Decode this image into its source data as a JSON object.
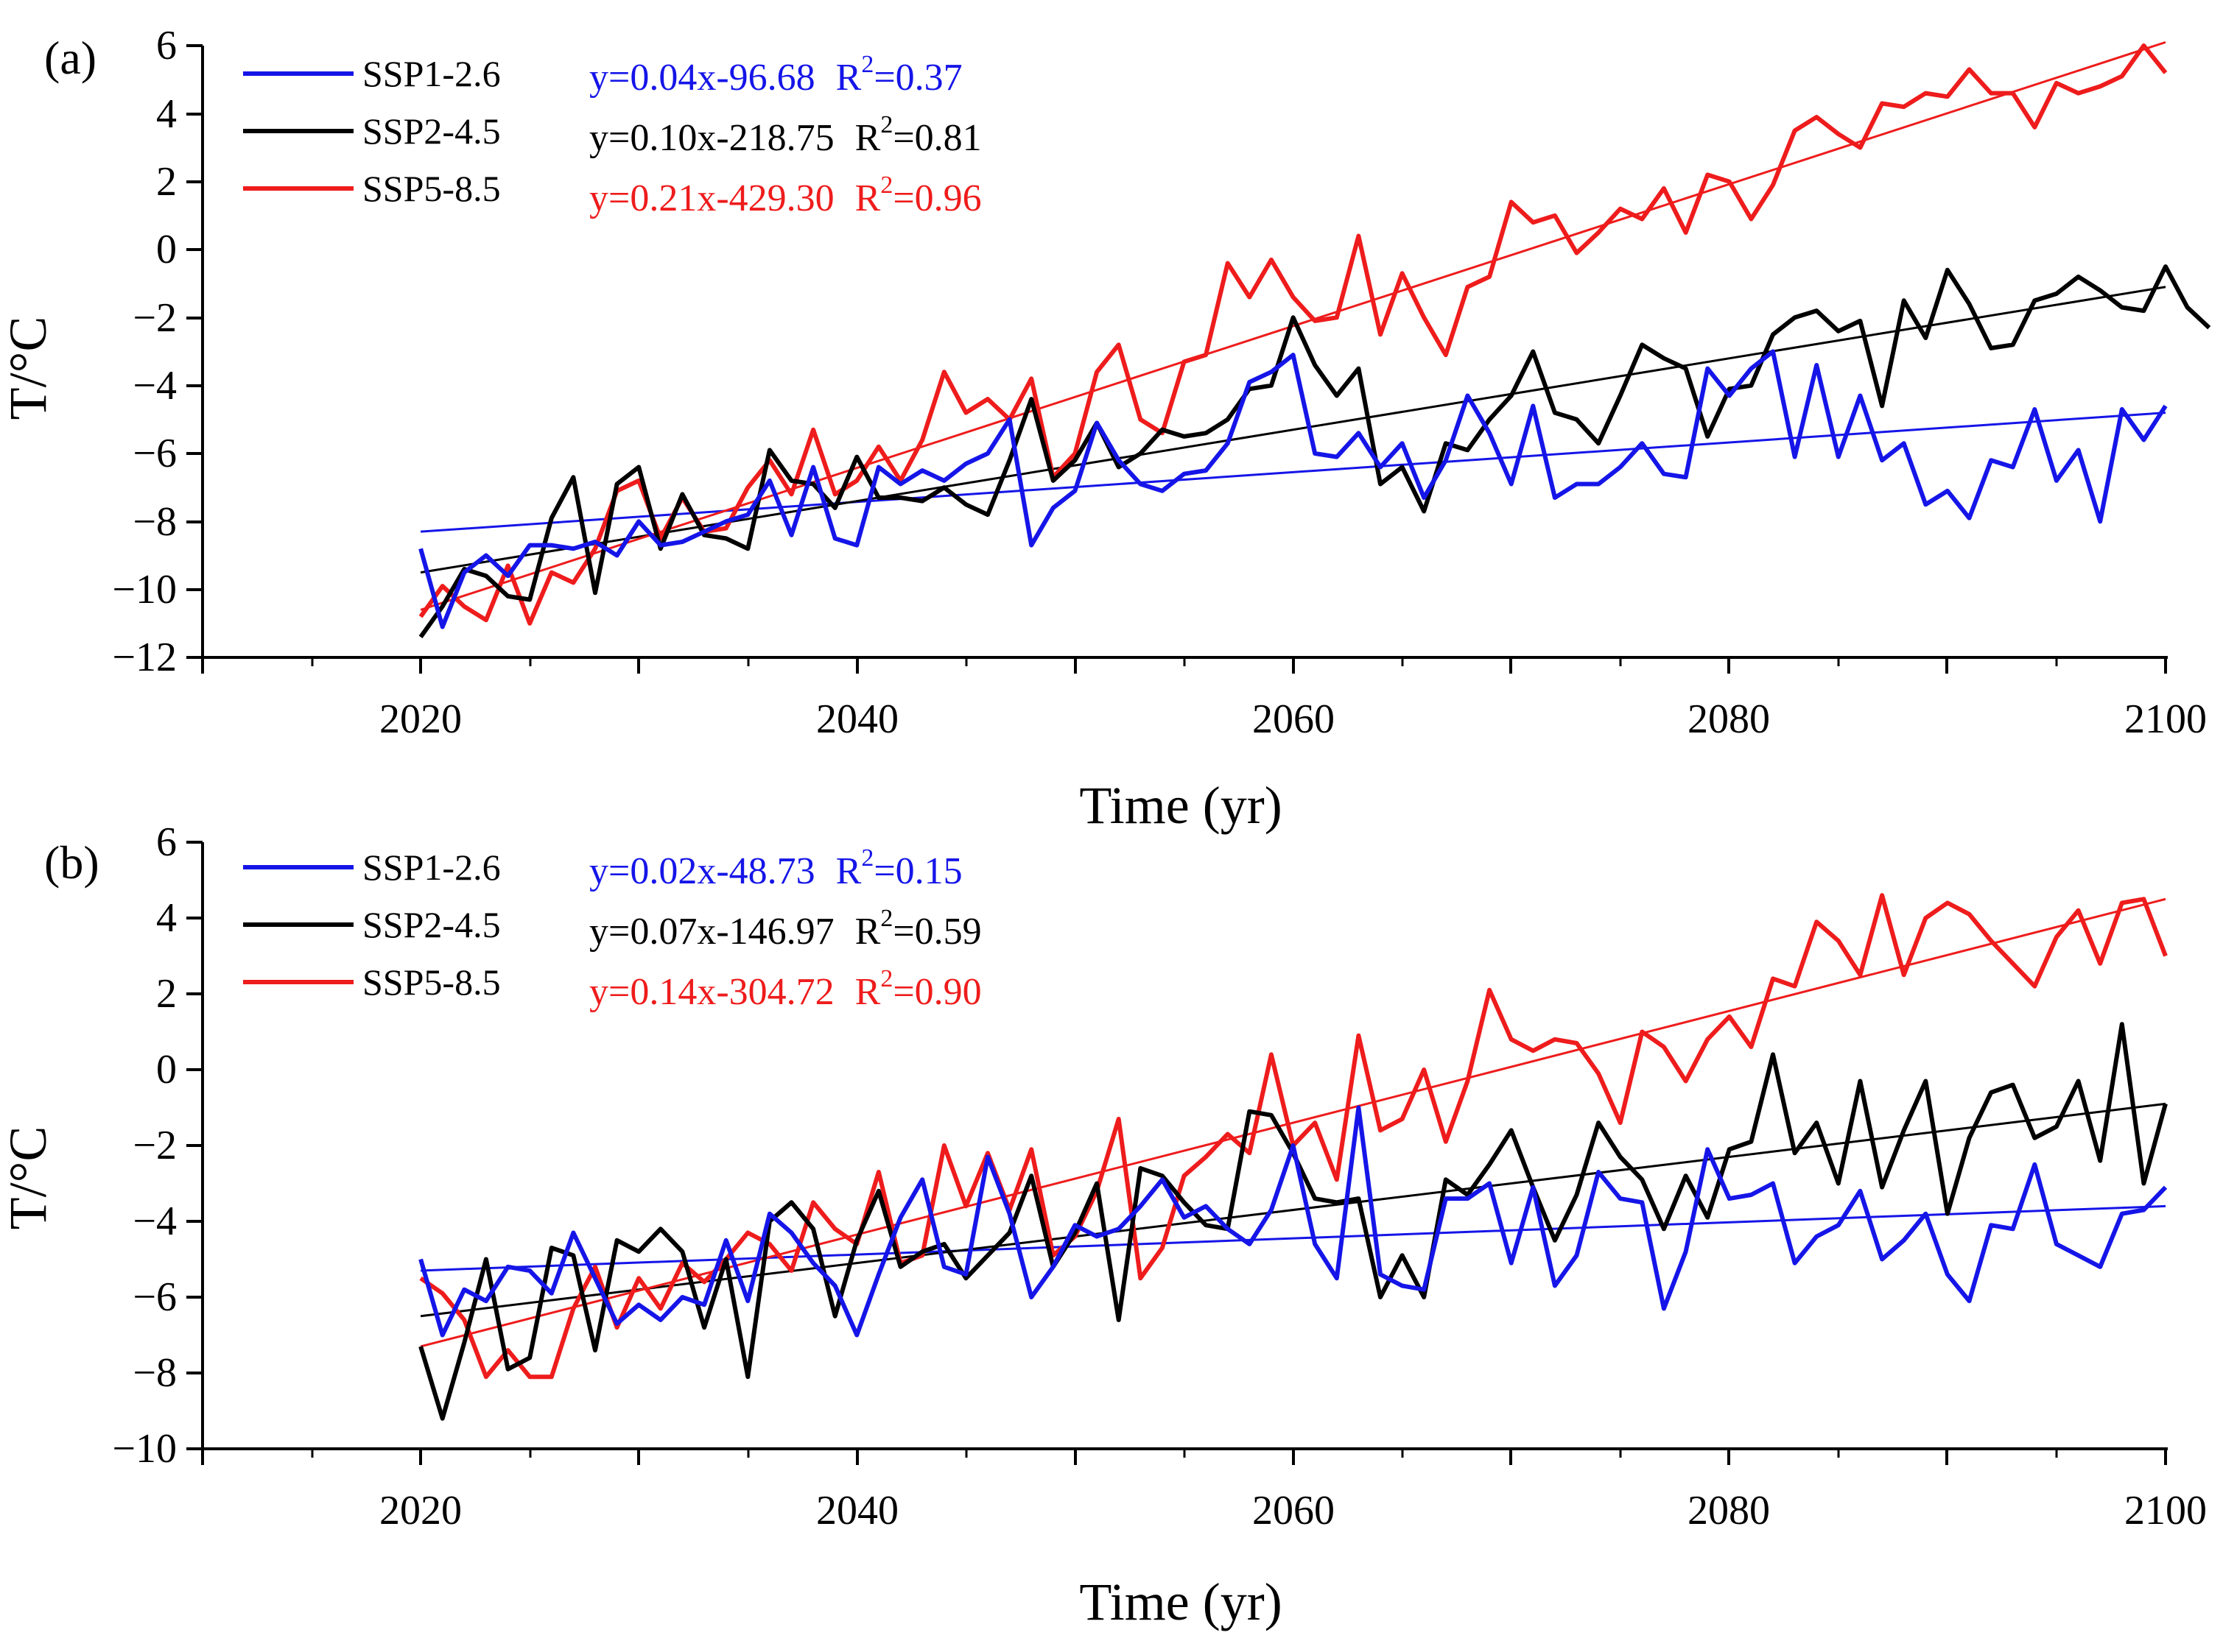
{
  "colors": {
    "ssp126": "#1515e8",
    "ssp245": "#000000",
    "ssp585": "#ee1c1c",
    "axis": "#000000"
  },
  "chart_data": [
    {
      "type": "line",
      "panel_label": "(a)",
      "xlabel": "Time (yr)",
      "ylabel": "T/°C",
      "xlim": [
        2010,
        2100
      ],
      "ylim": [
        -12,
        6
      ],
      "xticks": [
        2020,
        2040,
        2060,
        2080,
        2100
      ],
      "yticks": [
        -12,
        -10,
        -8,
        -6,
        -4,
        -2,
        0,
        2,
        4,
        6
      ],
      "ytick_labels": [
        "−12",
        "−10",
        "−8",
        "−6",
        "−4",
        "−2",
        "0",
        "2",
        "4",
        "6"
      ],
      "series": [
        {
          "name": "SSP1-2.6",
          "color_key": "ssp126",
          "x_start": 2020,
          "values": [
            -8.8,
            -11.1,
            -9.5,
            -9.0,
            -9.6,
            -8.7,
            -8.7,
            -8.8,
            -8.6,
            -9.0,
            -8.0,
            -8.7,
            -8.6,
            -8.3,
            -8.0,
            -7.8,
            -6.8,
            -8.4,
            -6.4,
            -8.5,
            -8.7,
            -6.4,
            -6.9,
            -6.5,
            -6.8,
            -6.3,
            -6.0,
            -5.0,
            -8.7,
            -7.6,
            -7.1,
            -5.1,
            -6.2,
            -6.9,
            -7.1,
            -6.6,
            -6.5,
            -5.7,
            -3.9,
            -3.6,
            -3.1,
            -6.0,
            -6.1,
            -5.4,
            -6.4,
            -5.7,
            -7.3,
            -6.2,
            -4.3,
            -5.4,
            -6.9,
            -4.6,
            -7.3,
            -6.9,
            -6.9,
            -6.4,
            -5.7,
            -6.6,
            -6.7,
            -3.5,
            -4.3,
            -3.5,
            -3.0,
            -6.1,
            -3.4,
            -6.1,
            -4.3,
            -6.2,
            -5.7,
            -7.5,
            -7.1,
            -7.9,
            -6.2,
            -6.4,
            -4.7,
            -6.8,
            -5.9,
            -8.0,
            -4.7,
            -5.6,
            -4.6
          ],
          "equation": "y=0.04x-96.68",
          "r2_label": "R",
          "r2_value": "=0.37",
          "trend": {
            "slope": 0.04,
            "intercept": -96.68
          },
          "trend_endpoints_y": [
            -8.3,
            -4.8
          ]
        },
        {
          "name": "SSP2-4.5",
          "color_key": "ssp245",
          "x_start": 2020,
          "values": [
            -11.4,
            -10.5,
            -9.4,
            -9.6,
            -10.2,
            -10.3,
            -7.9,
            -6.7,
            -10.1,
            -6.9,
            -6.4,
            -8.8,
            -7.2,
            -8.4,
            -8.5,
            -8.8,
            -5.9,
            -6.8,
            -6.9,
            -7.6,
            -6.1,
            -7.3,
            -7.3,
            -7.4,
            -7.0,
            -7.5,
            -7.8,
            -6.2,
            -4.4,
            -6.8,
            -6.2,
            -5.1,
            -6.4,
            -6.0,
            -5.3,
            -5.5,
            -5.4,
            -5.0,
            -4.1,
            -4.0,
            -2.0,
            -3.4,
            -4.3,
            -3.5,
            -6.9,
            -6.4,
            -7.7,
            -5.7,
            -5.9,
            -5.0,
            -4.3,
            -3.0,
            -4.8,
            -5.0,
            -5.7,
            -4.3,
            -2.8,
            -3.2,
            -3.5,
            -5.5,
            -4.1,
            -4.0,
            -2.5,
            -2.0,
            -1.8,
            -2.4,
            -2.1,
            -4.6,
            -1.5,
            -2.6,
            -0.6,
            -1.6,
            -2.9,
            -2.8,
            -1.5,
            -1.3,
            -0.8,
            -1.2,
            -1.7,
            -1.8,
            -0.5,
            -1.7,
            -2.3
          ],
          "equation": "y=0.10x-218.75",
          "r2_label": "R",
          "r2_value": "=0.81",
          "trend": {
            "slope": 0.1,
            "intercept": -218.75
          },
          "trend_endpoints_y": [
            -9.5,
            -1.1
          ]
        },
        {
          "name": "SSP5-8.5",
          "color_key": "ssp585",
          "x_start": 2020,
          "values": [
            -10.8,
            -9.9,
            -10.5,
            -10.9,
            -9.3,
            -11.0,
            -9.5,
            -9.8,
            -8.8,
            -7.1,
            -6.8,
            -8.5,
            -7.3,
            -8.3,
            -8.2,
            -7.0,
            -6.2,
            -7.2,
            -5.3,
            -7.2,
            -6.8,
            -5.8,
            -6.8,
            -5.6,
            -3.6,
            -4.8,
            -4.4,
            -5.0,
            -3.8,
            -6.7,
            -6.0,
            -3.6,
            -2.8,
            -5.0,
            -5.4,
            -3.3,
            -3.1,
            -0.4,
            -1.4,
            -0.3,
            -1.4,
            -2.1,
            -2.0,
            0.4,
            -2.5,
            -0.7,
            -2.0,
            -3.1,
            -1.1,
            -0.8,
            1.4,
            0.8,
            1.0,
            -0.1,
            0.5,
            1.2,
            0.9,
            1.8,
            0.5,
            2.2,
            2.0,
            0.9,
            1.9,
            3.5,
            3.9,
            3.4,
            3.0,
            4.3,
            4.2,
            4.6,
            4.5,
            5.3,
            4.6,
            4.6,
            3.6,
            4.9,
            4.6,
            4.8,
            5.1,
            6.0,
            5.2
          ],
          "equation": "y=0.21x-429.30",
          "r2_label": "R",
          "r2_value": "=0.96",
          "trend": {
            "slope": 0.21,
            "intercept": -429.3
          },
          "trend_endpoints_y": [
            -10.6,
            6.1
          ]
        }
      ]
    },
    {
      "type": "line",
      "panel_label": "(b)",
      "xlabel": "Time (yr)",
      "ylabel": "T/°C",
      "xlim": [
        2010,
        2100
      ],
      "ylim": [
        -10,
        6
      ],
      "xticks": [
        2020,
        2040,
        2060,
        2080,
        2100
      ],
      "yticks": [
        -10,
        -8,
        -6,
        -4,
        -2,
        0,
        2,
        4,
        6
      ],
      "ytick_labels": [
        "−10",
        "−8",
        "−6",
        "−4",
        "−2",
        "0",
        "2",
        "4",
        "6"
      ],
      "series": [
        {
          "name": "SSP1-2.6",
          "color_key": "ssp126",
          "x_start": 2020,
          "values": [
            -5.0,
            -7.0,
            -5.8,
            -6.1,
            -5.2,
            -5.3,
            -5.9,
            -4.3,
            -5.5,
            -6.7,
            -6.2,
            -6.6,
            -6.0,
            -6.2,
            -4.5,
            -6.1,
            -3.8,
            -4.3,
            -5.1,
            -5.7,
            -7.0,
            -5.4,
            -3.9,
            -2.9,
            -5.2,
            -5.4,
            -2.3,
            -3.8,
            -6.0,
            -5.2,
            -4.1,
            -4.4,
            -4.2,
            -3.6,
            -2.9,
            -3.9,
            -3.6,
            -4.2,
            -4.6,
            -3.7,
            -2.0,
            -4.6,
            -5.5,
            -1.0,
            -5.4,
            -5.7,
            -5.8,
            -3.4,
            -3.4,
            -3.0,
            -5.1,
            -3.1,
            -5.7,
            -4.9,
            -2.7,
            -3.4,
            -3.5,
            -6.3,
            -4.8,
            -2.1,
            -3.4,
            -3.3,
            -3.0,
            -5.1,
            -4.4,
            -4.1,
            -3.2,
            -5.0,
            -4.5,
            -3.8,
            -5.4,
            -6.1,
            -4.1,
            -4.2,
            -2.5,
            -4.6,
            -4.9,
            -5.2,
            -3.8,
            -3.7,
            -3.1
          ],
          "equation": "y=0.02x-48.73",
          "r2_label": "R",
          "r2_value": "=0.15",
          "trend": {
            "slope": 0.02,
            "intercept": -48.73
          },
          "trend_endpoints_y": [
            -5.3,
            -3.6
          ]
        },
        {
          "name": "SSP2-4.5",
          "color_key": "ssp245",
          "x_start": 2020,
          "values": [
            -7.3,
            -9.2,
            -7.2,
            -5.0,
            -7.9,
            -7.6,
            -4.7,
            -4.9,
            -7.4,
            -4.5,
            -4.8,
            -4.2,
            -4.8,
            -6.8,
            -5.0,
            -8.1,
            -4.0,
            -3.5,
            -4.2,
            -6.5,
            -4.5,
            -3.2,
            -5.2,
            -4.8,
            -4.6,
            -5.5,
            -4.9,
            -4.3,
            -2.8,
            -5.2,
            -4.3,
            -3.0,
            -6.6,
            -2.6,
            -2.8,
            -3.5,
            -4.1,
            -4.2,
            -1.1,
            -1.2,
            -2.2,
            -3.4,
            -3.5,
            -3.4,
            -6.0,
            -4.9,
            -6.0,
            -2.9,
            -3.3,
            -2.5,
            -1.6,
            -3.1,
            -4.5,
            -3.3,
            -1.4,
            -2.3,
            -2.9,
            -4.2,
            -2.8,
            -3.9,
            -2.1,
            -1.9,
            0.4,
            -2.2,
            -1.4,
            -3.0,
            -0.3,
            -3.1,
            -1.6,
            -0.3,
            -3.8,
            -1.8,
            -0.6,
            -0.4,
            -1.8,
            -1.5,
            -0.3,
            -2.4,
            1.2,
            -3.0,
            -0.9
          ],
          "equation": "y=0.07x-146.97",
          "r2_label": "R",
          "r2_value": "=0.59",
          "trend": {
            "slope": 0.07,
            "intercept": -146.97
          },
          "trend_endpoints_y": [
            -6.5,
            -0.9
          ]
        },
        {
          "name": "SSP5-8.5",
          "color_key": "ssp585",
          "x_start": 2020,
          "values": [
            -5.5,
            -5.9,
            -6.6,
            -8.1,
            -7.4,
            -8.1,
            -8.1,
            -6.3,
            -5.2,
            -6.8,
            -5.5,
            -6.3,
            -5.1,
            -5.6,
            -5.0,
            -4.3,
            -4.6,
            -5.3,
            -3.5,
            -4.2,
            -4.6,
            -2.7,
            -5.1,
            -4.9,
            -2.0,
            -3.6,
            -2.2,
            -3.7,
            -2.1,
            -4.9,
            -4.4,
            -3.2,
            -1.3,
            -5.5,
            -4.7,
            -2.8,
            -2.3,
            -1.7,
            -2.2,
            0.4,
            -2.0,
            -1.4,
            -2.9,
            0.9,
            -1.6,
            -1.3,
            0.0,
            -1.9,
            -0.3,
            2.1,
            0.8,
            0.5,
            0.8,
            0.7,
            -0.1,
            -1.4,
            1.0,
            0.6,
            -0.3,
            0.8,
            1.4,
            0.6,
            2.4,
            2.2,
            3.9,
            3.4,
            2.5,
            4.6,
            2.5,
            4.0,
            4.4,
            4.1,
            3.4,
            2.8,
            2.2,
            3.5,
            4.2,
            2.8,
            4.4,
            4.5,
            3.0
          ],
          "equation": "y=0.14x-304.72",
          "r2_label": "R",
          "r2_value": "=0.90",
          "trend": {
            "slope": 0.14,
            "intercept": -304.72
          },
          "trend_endpoints_y": [
            -7.3,
            4.5
          ]
        }
      ]
    }
  ]
}
